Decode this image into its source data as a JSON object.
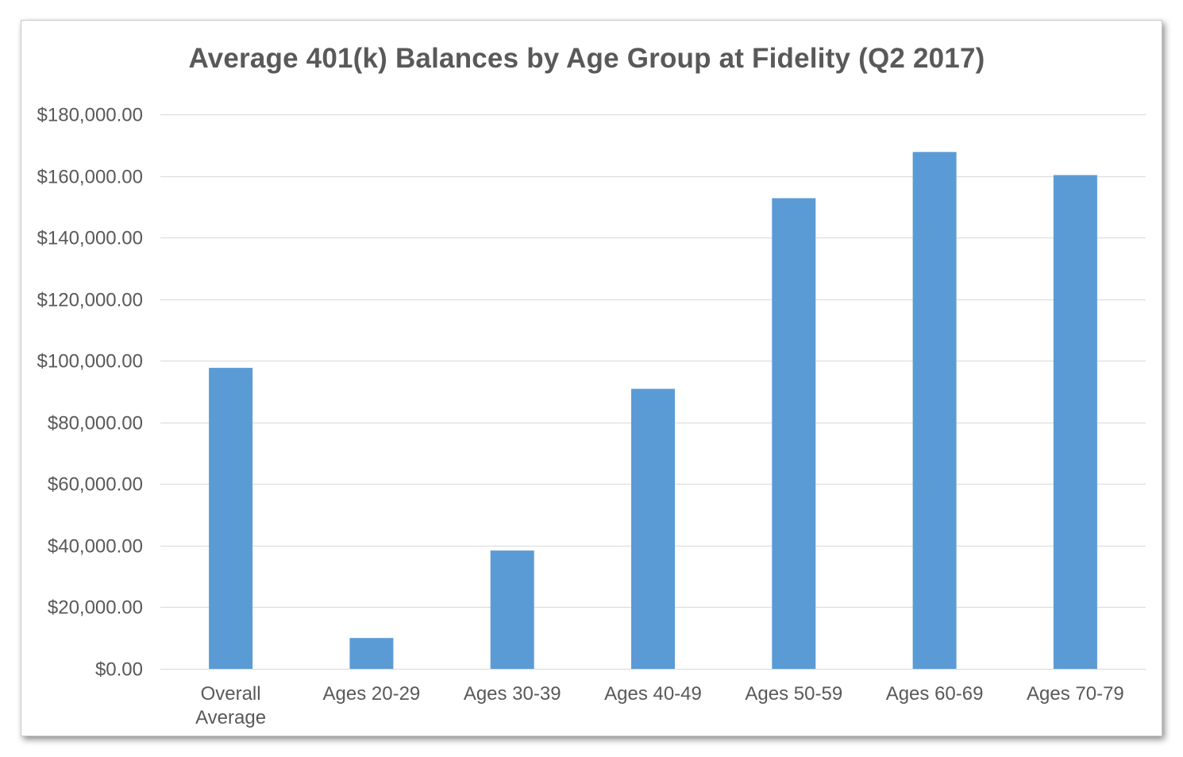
{
  "chart_data": {
    "type": "bar",
    "title": "Average 401(k) Balances by Age Group at Fidelity (Q2 2017)",
    "xlabel": "",
    "ylabel": "",
    "categories": [
      [
        "Overall",
        "Average"
      ],
      [
        "Ages 20-29"
      ],
      [
        "Ages 30-39"
      ],
      [
        "Ages 40-49"
      ],
      [
        "Ages 50-59"
      ],
      [
        "Ages 60-69"
      ],
      [
        "Ages 70-79"
      ]
    ],
    "values": [
      97700,
      10000,
      38400,
      90900,
      152800,
      167800,
      160300
    ],
    "ylim": [
      0,
      180000
    ],
    "yticks": [
      {
        "value": 0,
        "label": "$0.00"
      },
      {
        "value": 20000,
        "label": "$20,000.00"
      },
      {
        "value": 40000,
        "label": "$40,000.00"
      },
      {
        "value": 60000,
        "label": "$60,000.00"
      },
      {
        "value": 80000,
        "label": "$80,000.00"
      },
      {
        "value": 100000,
        "label": "$100,000.00"
      },
      {
        "value": 120000,
        "label": "$120,000.00"
      },
      {
        "value": 140000,
        "label": "$140,000.00"
      },
      {
        "value": 160000,
        "label": "$160,000.00"
      },
      {
        "value": 180000,
        "label": "$180,000.00"
      }
    ],
    "grid": true,
    "legend": "none",
    "colors": {
      "bar": "#5b9bd5",
      "grid": "#d9d9d9",
      "text": "#595959",
      "title": "#595959"
    }
  }
}
